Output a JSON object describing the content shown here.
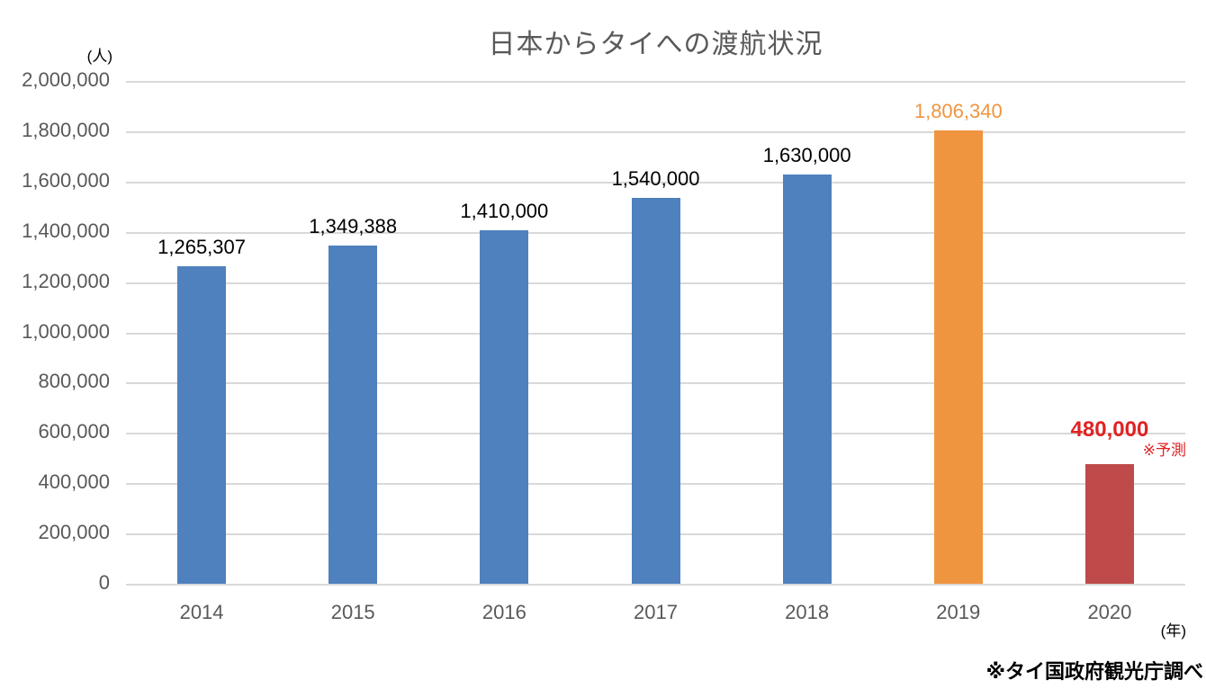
{
  "chart_data": {
    "type": "bar",
    "title": "日本からタイへの渡航状況",
    "y_unit": "(人)",
    "x_unit": "(年)",
    "forecast_note": "※予測",
    "source_note": "※タイ国政府観光庁調べ",
    "categories": [
      "2014",
      "2015",
      "2016",
      "2017",
      "2018",
      "2019",
      "2020"
    ],
    "values": [
      1265307,
      1349388,
      1410000,
      1540000,
      1630000,
      1806340,
      480000
    ],
    "value_labels": [
      "1,265,307",
      "1,349,388",
      "1,410,000",
      "1,540,000",
      "1,630,000",
      "1,806,340",
      "480,000"
    ],
    "bar_colors": [
      "#4e81bd",
      "#4e81bd",
      "#4e81bd",
      "#4e81bd",
      "#4e81bd",
      "#f0953f",
      "#be4b49"
    ],
    "value_label_colors": [
      "#000000",
      "#000000",
      "#000000",
      "#000000",
      "#000000",
      "#f0953f",
      "#e02222"
    ],
    "value_label_bold": [
      false,
      false,
      false,
      false,
      false,
      false,
      true
    ],
    "ylim": [
      0,
      2000000
    ],
    "y_tick_step": 200000,
    "y_tick_labels": [
      "0",
      "200,000",
      "400,000",
      "600,000",
      "800,000",
      "1,000,000",
      "1,200,000",
      "1,400,000",
      "1,600,000",
      "1,800,000",
      "2,000,000"
    ],
    "grid": true,
    "legend": false,
    "colors": {
      "grid": "#d9d9d9",
      "axis_text": "#595959",
      "title_text": "#595959",
      "forecast_text": "#e02222"
    }
  }
}
